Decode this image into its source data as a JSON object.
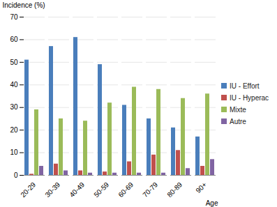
{
  "chart_data": {
    "type": "bar",
    "y_label": "Incidence (%)",
    "x_label": "Age",
    "categories": [
      "20-29",
      "30-39",
      "40-49",
      "50-59",
      "60-69",
      "70-79",
      "80-89",
      "90+"
    ],
    "series": [
      {
        "name": "IU - Effort",
        "color": "#4a7ebb",
        "values": [
          51,
          57,
          61,
          49,
          31,
          25,
          21,
          17
        ]
      },
      {
        "name": "IU - Hyperac",
        "color": "#c0504d",
        "values": [
          0.5,
          5,
          2,
          1.5,
          6,
          9,
          11,
          4
        ]
      },
      {
        "name": "Mixte",
        "color": "#9bbb59",
        "values": [
          29,
          25,
          24,
          32,
          39,
          38,
          34,
          36
        ]
      },
      {
        "name": "Autre",
        "color": "#8064a2",
        "values": [
          4,
          2,
          1,
          1,
          1,
          1,
          3,
          7
        ]
      }
    ],
    "ylim": [
      0,
      70
    ],
    "yticks": [
      0,
      10,
      20,
      30,
      40,
      50,
      60,
      70
    ],
    "grid": true,
    "legend": "right"
  }
}
